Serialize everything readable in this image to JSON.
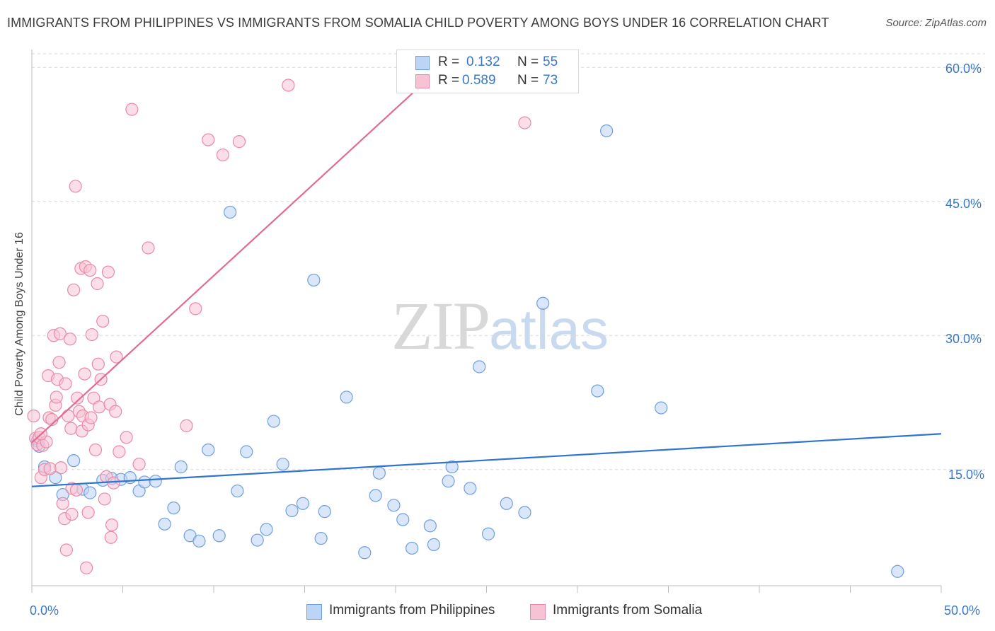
{
  "header": {
    "title": "IMMIGRANTS FROM PHILIPPINES VS IMMIGRANTS FROM SOMALIA CHILD POVERTY AMONG BOYS UNDER 16 CORRELATION CHART",
    "source": "Source: ZipAtlas.com"
  },
  "watermark": {
    "zip": "ZIP",
    "atlas": "atlas"
  },
  "legend": {
    "r_label": "R =",
    "n_label": "N =",
    "rows": [
      {
        "r": "0.132",
        "n": "55"
      },
      {
        "r": "0.589",
        "n": "73"
      }
    ]
  },
  "bottom_legend": {
    "philippines": "Immigrants from Philippines",
    "somalia": "Immigrants from Somalia"
  },
  "colors": {
    "philippines_fill": "#bcd4f5",
    "philippines_stroke": "#6f9fdc",
    "philippines_line": "#2f74cf",
    "somalia_fill": "#f7c3d4",
    "somalia_stroke": "#e98aa8",
    "somalia_line": "#e06c93",
    "tick_text": "#3a78c9"
  },
  "chart_data": {
    "type": "scatter",
    "title": "IMMIGRANTS FROM PHILIPPINES VS IMMIGRANTS FROM SOMALIA CHILD POVERTY AMONG BOYS UNDER 16 CORRELATION CHART",
    "xlabel": "",
    "ylabel": "Child Poverty Among Boys Under 16",
    "xlim": [
      0,
      50
    ],
    "ylim": [
      2,
      62
    ],
    "x_tick_labels": [
      "0.0%",
      "50.0%"
    ],
    "y_ticks": [
      15,
      30,
      45,
      60
    ],
    "y_tick_labels": [
      "15.0%",
      "30.0%",
      "45.0%",
      "60.0%"
    ],
    "grid": true,
    "series": [
      {
        "name": "Immigrants from Philippines",
        "r": 0.132,
        "n": 55,
        "trend": {
          "x": [
            0,
            50
          ],
          "y": [
            13.1,
            19.0
          ]
        },
        "points": [
          [
            0.3,
            18.2
          ],
          [
            0.4,
            17.6
          ],
          [
            0.7,
            15.3
          ],
          [
            1.3,
            14.1
          ],
          [
            1.7,
            12.2
          ],
          [
            2.3,
            16.0
          ],
          [
            2.8,
            12.8
          ],
          [
            3.2,
            12.4
          ],
          [
            3.9,
            13.8
          ],
          [
            4.4,
            14.0
          ],
          [
            4.9,
            13.9
          ],
          [
            5.4,
            14.1
          ],
          [
            5.9,
            12.6
          ],
          [
            6.2,
            13.6
          ],
          [
            6.8,
            13.7
          ],
          [
            7.3,
            8.9
          ],
          [
            7.8,
            10.7
          ],
          [
            8.2,
            15.3
          ],
          [
            8.7,
            7.6
          ],
          [
            9.2,
            7.0
          ],
          [
            9.7,
            17.2
          ],
          [
            10.3,
            7.6
          ],
          [
            10.9,
            43.8
          ],
          [
            11.3,
            12.6
          ],
          [
            11.8,
            17.0
          ],
          [
            12.4,
            7.1
          ],
          [
            12.9,
            8.3
          ],
          [
            13.3,
            20.4
          ],
          [
            13.8,
            15.6
          ],
          [
            14.3,
            10.4
          ],
          [
            14.9,
            11.2
          ],
          [
            15.5,
            36.2
          ],
          [
            15.9,
            7.3
          ],
          [
            16.1,
            10.3
          ],
          [
            17.3,
            23.1
          ],
          [
            18.3,
            5.7
          ],
          [
            18.9,
            12.1
          ],
          [
            19.1,
            14.6
          ],
          [
            19.9,
            11.0
          ],
          [
            20.4,
            9.4
          ],
          [
            20.9,
            6.2
          ],
          [
            21.9,
            8.7
          ],
          [
            22.1,
            6.6
          ],
          [
            22.9,
            13.7
          ],
          [
            23.1,
            15.3
          ],
          [
            24.1,
            12.9
          ],
          [
            24.6,
            26.5
          ],
          [
            25.1,
            7.8
          ],
          [
            26.1,
            11.2
          ],
          [
            27.1,
            10.2
          ],
          [
            28.1,
            33.6
          ],
          [
            31.1,
            23.8
          ],
          [
            31.6,
            52.9
          ],
          [
            34.6,
            21.9
          ],
          [
            47.6,
            3.6
          ]
        ]
      },
      {
        "name": "Immigrants from Somalia",
        "r": 0.589,
        "n": 73,
        "trend": {
          "x": [
            0,
            22.1
          ],
          "y": [
            18.0,
            59.3
          ]
        },
        "points": [
          [
            0.1,
            21.0
          ],
          [
            0.2,
            18.5
          ],
          [
            0.3,
            17.8
          ],
          [
            0.4,
            18.6
          ],
          [
            0.5,
            14.1
          ],
          [
            0.6,
            17.7
          ],
          [
            0.7,
            15.0
          ],
          [
            0.8,
            18.1
          ],
          [
            0.9,
            25.5
          ],
          [
            0.95,
            20.8
          ],
          [
            1.0,
            15.1
          ],
          [
            1.1,
            20.6
          ],
          [
            1.2,
            30.0
          ],
          [
            1.3,
            22.2
          ],
          [
            1.35,
            23.1
          ],
          [
            1.4,
            25.1
          ],
          [
            1.5,
            27.0
          ],
          [
            1.55,
            30.2
          ],
          [
            1.6,
            15.2
          ],
          [
            1.7,
            11.2
          ],
          [
            1.8,
            9.5
          ],
          [
            1.85,
            24.6
          ],
          [
            1.9,
            6.0
          ],
          [
            2.0,
            21.0
          ],
          [
            2.1,
            29.6
          ],
          [
            2.15,
            19.6
          ],
          [
            2.2,
            12.9
          ],
          [
            2.3,
            35.1
          ],
          [
            2.4,
            46.7
          ],
          [
            2.45,
            12.7
          ],
          [
            2.5,
            23.0
          ],
          [
            2.6,
            21.5
          ],
          [
            2.7,
            37.5
          ],
          [
            2.75,
            19.3
          ],
          [
            2.8,
            21.0
          ],
          [
            2.9,
            25.7
          ],
          [
            2.95,
            37.7
          ],
          [
            3.0,
            4.0
          ],
          [
            3.1,
            20.0
          ],
          [
            3.2,
            37.3
          ],
          [
            3.25,
            20.8
          ],
          [
            3.3,
            30.1
          ],
          [
            3.4,
            23.0
          ],
          [
            3.5,
            17.2
          ],
          [
            3.6,
            35.8
          ],
          [
            3.65,
            26.8
          ],
          [
            3.7,
            22.0
          ],
          [
            3.8,
            25.1
          ],
          [
            3.9,
            31.6
          ],
          [
            4.0,
            11.7
          ],
          [
            4.1,
            14.2
          ],
          [
            4.2,
            37.1
          ],
          [
            4.3,
            22.3
          ],
          [
            4.35,
            7.4
          ],
          [
            4.4,
            8.8
          ],
          [
            4.5,
            13.5
          ],
          [
            4.6,
            21.5
          ],
          [
            4.65,
            27.6
          ],
          [
            4.8,
            17.0
          ],
          [
            5.2,
            18.6
          ],
          [
            5.5,
            55.3
          ],
          [
            5.9,
            15.6
          ],
          [
            6.4,
            39.8
          ],
          [
            8.5,
            19.9
          ],
          [
            9.0,
            33.0
          ],
          [
            9.7,
            51.9
          ],
          [
            10.5,
            50.2
          ],
          [
            11.4,
            51.7
          ],
          [
            14.1,
            58.0
          ],
          [
            27.1,
            53.8
          ],
          [
            2.2,
            10.0
          ],
          [
            0.5,
            19.0
          ],
          [
            3.1,
            10.2
          ]
        ]
      }
    ]
  }
}
